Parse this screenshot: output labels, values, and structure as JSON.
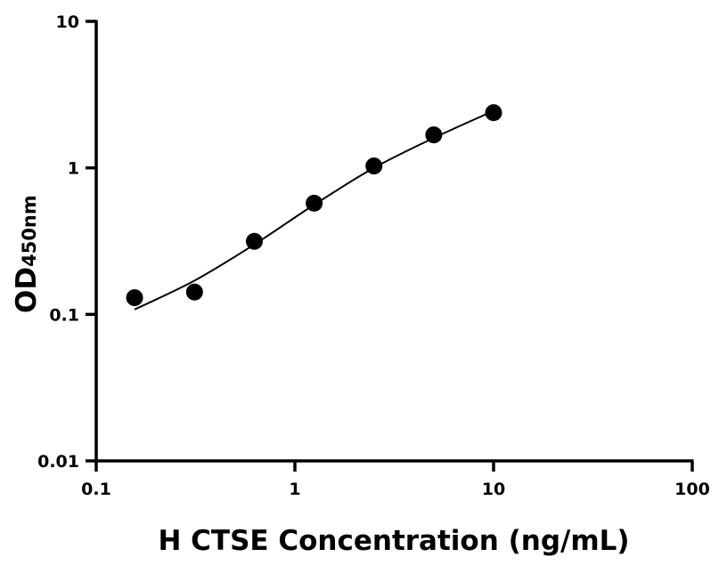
{
  "chart_data": {
    "type": "scatter",
    "title": "",
    "xlabel": "H CTSE Concentration (ng/mL)",
    "ylabel": "OD",
    "ylabel_subscript": "450nm",
    "x_scale": "log",
    "y_scale": "log",
    "xlim": [
      0.1,
      100
    ],
    "ylim": [
      0.01,
      10
    ],
    "x_ticks": [
      "0.1",
      "1",
      "10",
      "100"
    ],
    "y_ticks": [
      "0.01",
      "0.1",
      "1",
      "10"
    ],
    "grid": false,
    "points": {
      "x": [
        0.156,
        0.3125,
        0.625,
        1.25,
        2.5,
        5,
        10
      ],
      "y": [
        0.13,
        0.142,
        0.315,
        0.574,
        1.03,
        1.68,
        2.38
      ]
    },
    "fit_curve": {
      "x": [
        0.156,
        0.3125,
        0.625,
        1.25,
        2.5,
        5,
        10
      ],
      "y": [
        0.108,
        0.17,
        0.3,
        0.56,
        1.0,
        1.6,
        2.45
      ]
    },
    "colors": {
      "points": "#000000",
      "curve": "#000000",
      "axes": "#000000"
    }
  }
}
